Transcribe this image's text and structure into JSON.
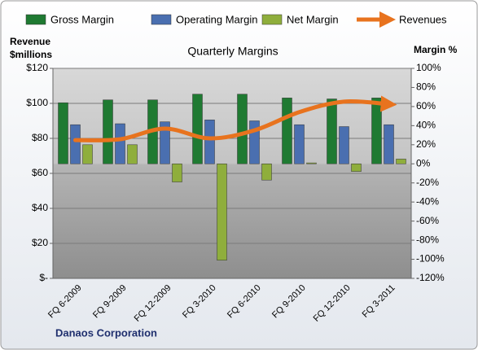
{
  "chart_data": {
    "type": "bar",
    "title": "Quarterly Margins",
    "ylabel": [
      "Revenue",
      "$millions"
    ],
    "y2label": "Margin %",
    "footnote": "Danaos Corporation",
    "categories": [
      "FQ 6-2009",
      "FQ 9-2009",
      "FQ 12-2009",
      "FQ 3-2010",
      "FQ 6-2010",
      "FQ 9-2010",
      "FQ 12-2010",
      "FQ 3-2011"
    ],
    "series": [
      {
        "name": "Gross Margin",
        "color": "#1f7a32",
        "axis": "y2",
        "values": [
          64,
          67,
          67,
          73,
          73,
          69,
          68,
          69
        ]
      },
      {
        "name": "Operating Margin",
        "color": "#4a6fb0",
        "axis": "y2",
        "values": [
          41,
          42,
          44,
          46,
          45,
          41,
          39,
          41
        ]
      },
      {
        "name": "Net Margin",
        "color": "#8fae3c",
        "axis": "y2",
        "values": [
          20,
          20,
          -19,
          -101,
          -17,
          1,
          -8,
          5
        ]
      },
      {
        "name": "Revenues",
        "color": "#e8731e",
        "axis": "y",
        "type": "line",
        "values": [
          79,
          79.5,
          85.6,
          80,
          84.6,
          95,
          101,
          99.5
        ]
      }
    ],
    "ylim": [
      0,
      120
    ],
    "yticks": [
      {
        "value": 0,
        "label": "$-"
      },
      {
        "value": 20,
        "label": "$20"
      },
      {
        "value": 40,
        "label": "$40"
      },
      {
        "value": 60,
        "label": "$60"
      },
      {
        "value": 80,
        "label": "$80"
      },
      {
        "value": 100,
        "label": "$100"
      },
      {
        "value": 120,
        "label": "$120"
      }
    ],
    "y2lim": [
      -120,
      100
    ],
    "y2ticks": [
      {
        "value": -120,
        "label": "-120%"
      },
      {
        "value": -100,
        "label": "-100%"
      },
      {
        "value": -80,
        "label": "-80%"
      },
      {
        "value": -60,
        "label": "-60%"
      },
      {
        "value": -40,
        "label": "-40%"
      },
      {
        "value": -20,
        "label": "-20%"
      },
      {
        "value": 0,
        "label": "0%"
      },
      {
        "value": 20,
        "label": "20%"
      },
      {
        "value": 40,
        "label": "40%"
      },
      {
        "value": 60,
        "label": "60%"
      },
      {
        "value": 80,
        "label": "80%"
      },
      {
        "value": 100,
        "label": "100%"
      }
    ],
    "grid": true
  }
}
